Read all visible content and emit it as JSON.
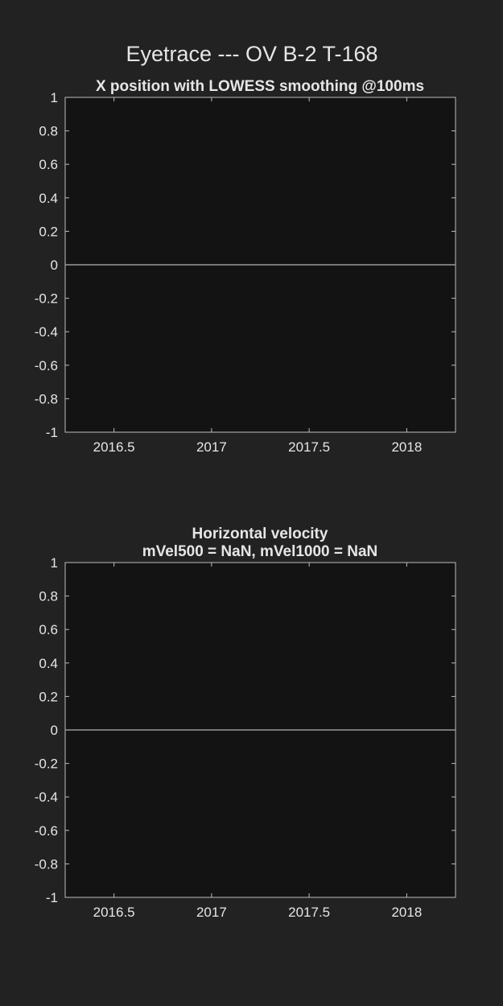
{
  "figure": {
    "title": "Eyetrace --- OV B-2 T-168",
    "background": "#222222",
    "axes_background": "#131313"
  },
  "chart_data": [
    {
      "type": "line",
      "title": "X position with LOWESS smoothing @100ms",
      "xlabel": "",
      "ylabel": "",
      "xlim": [
        2016.25,
        2018.25
      ],
      "ylim": [
        -1,
        1
      ],
      "xticks": [
        2016.5,
        2017,
        2017.5,
        2018
      ],
      "xtick_labels": [
        "2016.5",
        "2017",
        "2017.5",
        "2018"
      ],
      "yticks": [
        -1,
        -0.8,
        -0.6,
        -0.4,
        -0.2,
        0,
        0.2,
        0.4,
        0.6,
        0.8,
        1
      ],
      "ytick_labels": [
        "-1",
        "-0.8",
        "-0.6",
        "-0.4",
        "-0.2",
        "0",
        "0.2",
        "0.4",
        "0.6",
        "0.8",
        "1"
      ],
      "grid": false,
      "series": [
        {
          "x": [
            2016.25,
            2018.25
          ],
          "y": [
            0,
            0
          ],
          "color": "#9a9a9a"
        }
      ]
    },
    {
      "type": "line",
      "title": "Horizontal velocity",
      "subtitle": "mVel500 = NaN, mVel1000 = NaN",
      "xlabel": "",
      "ylabel": "",
      "xlim": [
        2016.25,
        2018.25
      ],
      "ylim": [
        -1,
        1
      ],
      "xticks": [
        2016.5,
        2017,
        2017.5,
        2018
      ],
      "xtick_labels": [
        "2016.5",
        "2017",
        "2017.5",
        "2018"
      ],
      "yticks": [
        -1,
        -0.8,
        -0.6,
        -0.4,
        -0.2,
        0,
        0.2,
        0.4,
        0.6,
        0.8,
        1
      ],
      "ytick_labels": [
        "-1",
        "-0.8",
        "-0.6",
        "-0.4",
        "-0.2",
        "0",
        "0.2",
        "0.4",
        "0.6",
        "0.8",
        "1"
      ],
      "grid": false,
      "series": [
        {
          "x": [
            2016.25,
            2018.25
          ],
          "y": [
            0,
            0
          ],
          "color": "#9a9a9a"
        }
      ]
    }
  ]
}
